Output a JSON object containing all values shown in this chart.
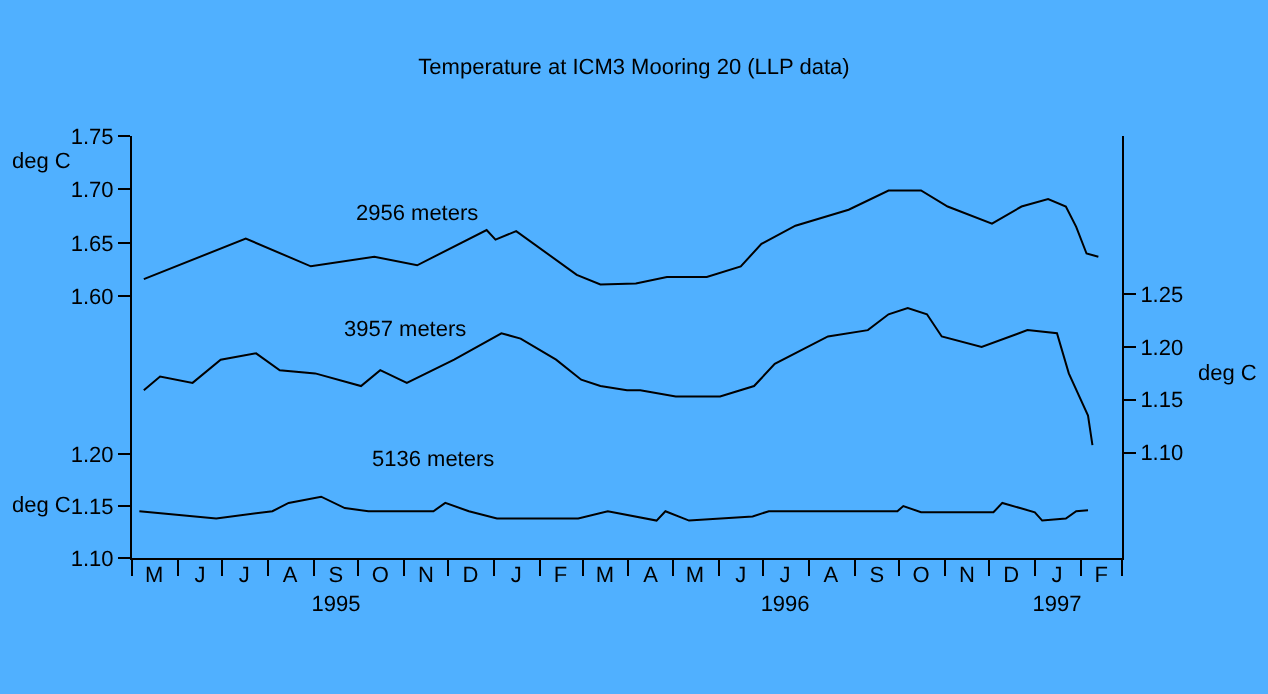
{
  "chart_data": {
    "type": "line",
    "title": "Temperature at ICM3 Mooring 20 (LLP data)",
    "ylabel": "deg C",
    "y2label": "deg C",
    "y3label": "deg C",
    "xlim": [
      "1995-05-01",
      "1997-03-01"
    ],
    "xticks": [
      {
        "value": "1995-05-01",
        "label": null
      },
      {
        "value": "1995-06-01",
        "label": null
      },
      {
        "value": "1995-07-01",
        "label": null
      },
      {
        "value": "1995-08-01",
        "label": null
      },
      {
        "value": "1995-09-01",
        "label": null
      },
      {
        "value": "1995-10-01",
        "label": null
      },
      {
        "value": "1995-11-01",
        "label": null
      },
      {
        "value": "1995-12-01",
        "label": null
      },
      {
        "value": "1996-01-01",
        "label": null
      },
      {
        "value": "1996-02-01",
        "label": null
      },
      {
        "value": "1996-03-01",
        "label": null
      },
      {
        "value": "1996-04-01",
        "label": null
      },
      {
        "value": "1996-05-01",
        "label": null
      },
      {
        "value": "1996-06-01",
        "label": null
      },
      {
        "value": "1996-07-01",
        "label": null
      },
      {
        "value": "1996-08-01",
        "label": null
      },
      {
        "value": "1996-09-01",
        "label": null
      },
      {
        "value": "1996-10-01",
        "label": null
      },
      {
        "value": "1996-11-01",
        "label": null
      },
      {
        "value": "1996-12-01",
        "label": null
      },
      {
        "value": "1997-01-01",
        "label": null
      },
      {
        "value": "1997-02-01",
        "label": null
      },
      {
        "value": "1997-03-01",
        "label": null
      },
      {
        "value": "1995-05-16",
        "label": "M"
      },
      {
        "value": "1995-06-16",
        "label": "J"
      },
      {
        "value": "1995-07-16",
        "label": "J"
      },
      {
        "value": "1995-08-16",
        "label": "A"
      },
      {
        "value": "1995-09-16",
        "label": "S\n1995"
      },
      {
        "value": "1995-10-16",
        "label": "O"
      },
      {
        "value": "1995-11-16",
        "label": "N"
      },
      {
        "value": "1995-12-16",
        "label": "D"
      },
      {
        "value": "1996-01-16",
        "label": "J"
      },
      {
        "value": "1996-02-15",
        "label": "F"
      },
      {
        "value": "1996-03-16",
        "label": "M"
      },
      {
        "value": "1996-04-16",
        "label": "A"
      },
      {
        "value": "1996-05-16",
        "label": "M"
      },
      {
        "value": "1996-06-16",
        "label": "J"
      },
      {
        "value": "1996-07-16",
        "label": "J\n1996"
      },
      {
        "value": "1996-08-16",
        "label": "A"
      },
      {
        "value": "1996-09-16",
        "label": "S"
      },
      {
        "value": "1996-10-16",
        "label": "O"
      },
      {
        "value": "1996-11-16",
        "label": "N"
      },
      {
        "value": "1996-12-16",
        "label": "D"
      },
      {
        "value": "1997-01-16",
        "label": "J\n1997"
      },
      {
        "value": "1997-02-15",
        "label": "F"
      }
    ],
    "ylim": [
      1.355,
      1.75
    ],
    "yticks": [
      {
        "value": 1.6,
        "label": "1.60"
      },
      {
        "value": 1.65,
        "label": "1.65"
      },
      {
        "value": 1.7,
        "label": "1.70"
      },
      {
        "value": 1.75,
        "label": "1.75"
      }
    ],
    "y2lim": [
      1.0,
      1.4
    ],
    "y2ticks": [
      {
        "value": 1.1,
        "label": "1.10"
      },
      {
        "value": 1.15,
        "label": "1.15"
      },
      {
        "value": 1.2,
        "label": "1.20"
      },
      {
        "value": 1.25,
        "label": "1.25"
      }
    ],
    "y3lim": [
      1.1,
      1.506
    ],
    "y3ticks": [
      {
        "value": 1.1,
        "label": "1.10"
      },
      {
        "value": 1.15,
        "label": "1.15"
      },
      {
        "value": 1.2,
        "label": "1.20"
      }
    ],
    "grid": false,
    "legend": false,
    "series": [
      {
        "name": "2956 meters",
        "color": "#000000",
        "axis": "y",
        "x": [
          "1995-05-09",
          "1995-07-17",
          "1995-08-30",
          "1995-10-12",
          "1995-11-10",
          "1995-12-27",
          "1996-01-02",
          "1996-01-16",
          "1996-02-26",
          "1996-03-13",
          "1996-04-06",
          "1996-04-27",
          "1996-05-24",
          "1996-06-16",
          "1996-06-30",
          "1996-07-23",
          "1996-08-28",
          "1996-09-24",
          "1996-10-16",
          "1996-11-03",
          "1996-12-03",
          "1996-12-23",
          "1997-01-10",
          "1997-01-22",
          "1997-01-29",
          "1997-02-05",
          "1997-02-13"
        ],
        "values": [
          1.616,
          1.654,
          1.628,
          1.637,
          1.629,
          1.662,
          1.653,
          1.661,
          1.62,
          1.611,
          1.612,
          1.618,
          1.618,
          1.628,
          1.649,
          1.666,
          1.681,
          1.699,
          1.699,
          1.684,
          1.668,
          1.684,
          1.691,
          1.684,
          1.665,
          1.64,
          1.637
        ]
      },
      {
        "name": "3957 meters",
        "color": "#000000",
        "axis": "y2",
        "x": [
          "1995-05-09",
          "1995-05-20",
          "1995-06-11",
          "1995-06-30",
          "1995-07-24",
          "1995-08-09",
          "1995-09-02",
          "1995-10-03",
          "1995-10-16",
          "1995-11-03",
          "1995-12-05",
          "1996-01-06",
          "1996-01-19",
          "1996-02-12",
          "1996-02-29",
          "1996-03-13",
          "1996-03-31",
          "1996-04-09",
          "1996-05-03",
          "1996-06-02",
          "1996-06-25",
          "1996-07-09",
          "1996-08-14",
          "1996-09-10",
          "1996-09-24",
          "1996-10-07",
          "1996-10-20",
          "1996-10-30",
          "1996-11-26",
          "1996-12-27",
          "1997-01-16",
          "1997-01-24",
          "1997-02-06",
          "1997-02-09"
        ],
        "values": [
          1.159,
          1.172,
          1.166,
          1.188,
          1.194,
          1.178,
          1.175,
          1.163,
          1.178,
          1.166,
          1.188,
          1.213,
          1.208,
          1.188,
          1.169,
          1.163,
          1.159,
          1.159,
          1.153,
          1.153,
          1.163,
          1.184,
          1.21,
          1.216,
          1.231,
          1.237,
          1.231,
          1.21,
          1.2,
          1.216,
          1.213,
          1.175,
          1.135,
          1.107
        ]
      },
      {
        "name": "5136 meters",
        "color": "#000000",
        "axis": "y3",
        "x": [
          "1995-05-06",
          "1995-06-27",
          "1995-08-04",
          "1995-08-15",
          "1995-09-06",
          "1995-09-22",
          "1995-10-08",
          "1995-11-21",
          "1995-11-29",
          "1995-12-15",
          "1996-01-03",
          "1996-02-27",
          "1996-03-18",
          "1996-04-20",
          "1996-04-26",
          "1996-05-12",
          "1996-06-24",
          "1996-07-05",
          "1996-09-30",
          "1996-10-04",
          "1996-10-16",
          "1996-12-04",
          "1996-12-10",
          "1997-01-01",
          "1997-01-06",
          "1997-01-22",
          "1997-01-29",
          "1997-02-06"
        ],
        "values": [
          1.145,
          1.138,
          1.145,
          1.153,
          1.159,
          1.148,
          1.145,
          1.145,
          1.153,
          1.145,
          1.138,
          1.138,
          1.145,
          1.136,
          1.145,
          1.136,
          1.14,
          1.145,
          1.145,
          1.15,
          1.144,
          1.144,
          1.153,
          1.144,
          1.136,
          1.138,
          1.145,
          1.146
        ]
      }
    ]
  }
}
